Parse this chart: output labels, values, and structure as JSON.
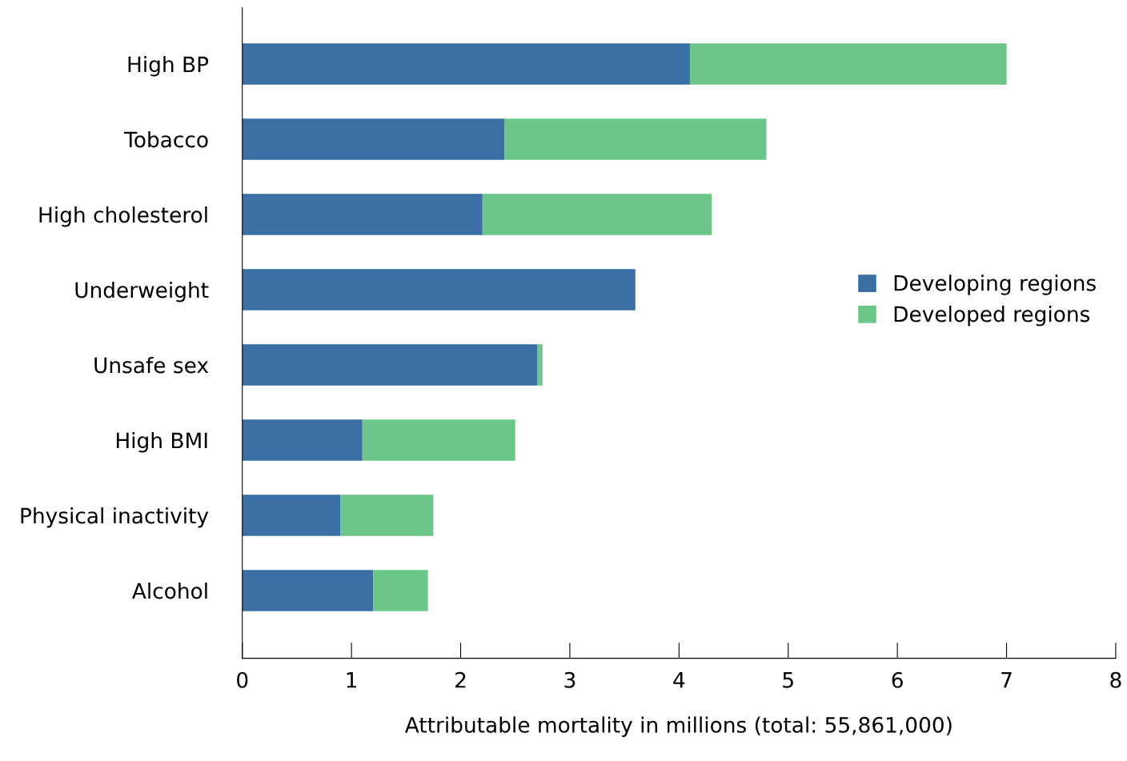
{
  "chart_data": {
    "type": "bar",
    "orientation": "horizontal",
    "stacked": true,
    "categories": [
      "High BP",
      "Tobacco",
      "High cholesterol",
      "Underweight",
      "Unsafe sex",
      "High BMI",
      "Physical inactivity",
      "Alcohol"
    ],
    "series": [
      {
        "name": "Developing regions",
        "color": "#3a6ea5",
        "values": [
          4.1,
          2.4,
          2.2,
          3.6,
          2.7,
          1.1,
          0.9,
          1.2
        ]
      },
      {
        "name": "Developed regions",
        "color": "#6cc68a",
        "values": [
          2.9,
          2.4,
          2.1,
          0,
          0.05,
          1.4,
          0.85,
          0.5
        ]
      }
    ],
    "xlabel": "Attributable mortality in millions (total: 55,861,000)",
    "xlim": [
      0,
      8
    ],
    "xticks": [
      0,
      1,
      2,
      3,
      4,
      5,
      6,
      7,
      8
    ],
    "grid": false,
    "legend": "right"
  }
}
